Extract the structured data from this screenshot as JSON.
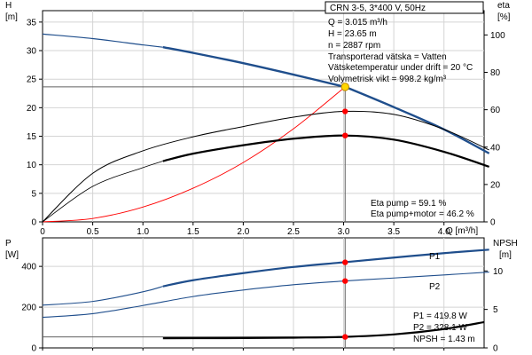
{
  "chart_data": [
    {
      "type": "line",
      "header": "CRN 3-5, 3*400 V, 50Hz",
      "ylabel_left": "H",
      "ylabel_left_unit": "[m]",
      "ylabel_right": "eta",
      "ylabel_right_unit": "[%]",
      "xlabel": "Q [m³/h]",
      "xlim": [
        0,
        4.4
      ],
      "ylim_left": [
        0,
        37
      ],
      "ylim_right": [
        0,
        113
      ],
      "x_ticks": [
        "0",
        "0.5",
        "1.0",
        "1.5",
        "2.0",
        "2.5",
        "3.0",
        "3.5",
        "4.0"
      ],
      "y_ticks_left": [
        "0",
        "5",
        "10",
        "15",
        "20",
        "25",
        "30",
        "35"
      ],
      "y_ticks_right": [
        "0",
        "20",
        "40",
        "60",
        "80",
        "100"
      ],
      "grid": true,
      "annotations": [
        "Q = 3.015 m³/h",
        "H = 23.65 m",
        "n = 2887 rpm",
        "Transporterad vätska = Vatten",
        "Vätsketemperatur under drift = 20 °C",
        "Volymetrisk vikt = 998.2 kg/m³"
      ],
      "eta_annotations": [
        "Eta pump = 59.1 %",
        "Eta pump+motor = 46.2 %"
      ],
      "series": [
        {
          "color": "#1f4e8c",
          "axis": "left",
          "x": [
            0,
            0.5,
            1.0,
            1.2,
            1.5,
            2.0,
            2.5,
            3.0,
            3.015,
            3.5,
            4.0,
            4.45
          ],
          "values": [
            32.9,
            32.1,
            31.0,
            30.6,
            29.6,
            27.8,
            25.8,
            23.7,
            23.65,
            20.1,
            16.2,
            12.0
          ]
        },
        {
          "color": "#000000",
          "axis": "right",
          "x": [
            0,
            0.5,
            1.0,
            1.5,
            2.0,
            2.5,
            3.0,
            3.5,
            4.0,
            4.45
          ],
          "values": [
            0,
            26,
            38,
            45.5,
            51,
            56,
            59.1,
            57.5,
            49.5,
            38.5
          ]
        },
        {
          "color": "#000000",
          "axis": "right",
          "x": [
            0,
            0.5,
            1.0,
            1.2,
            1.5,
            2.0,
            2.5,
            3.0,
            3.5,
            4.0,
            4.45
          ],
          "values": [
            0,
            19,
            29,
            32.5,
            36.5,
            41,
            44.5,
            46.2,
            44,
            37.5,
            29.5
          ]
        },
        {
          "color": "#ff0000",
          "axis": "left",
          "x": [
            0,
            0.5,
            1.0,
            1.5,
            2.0,
            2.5,
            3.015
          ],
          "values": [
            0,
            0.6,
            2.6,
            5.9,
            10.4,
            16.3,
            23.65
          ]
        }
      ],
      "operating_point": {
        "x": 3.015,
        "y": 23.65
      },
      "eta_points": [
        59.1,
        46.2
      ]
    },
    {
      "type": "line",
      "ylabel_left": "P",
      "ylabel_left_unit": "[W]",
      "ylabel_right": "NPSH",
      "ylabel_right_unit": "[m]",
      "xlim": [
        0,
        4.4
      ],
      "ylim_left": [
        0,
        540
      ],
      "ylim_right": [
        0,
        14.3
      ],
      "y_ticks_left": [
        "0",
        "200",
        "400"
      ],
      "y_ticks_right": [
        "0",
        "5",
        "10"
      ],
      "grid": true,
      "annotations": [
        "P1 = 419.8 W",
        "P2 = 328.1 W",
        "NPSH = 1.43 m"
      ],
      "series": [
        {
          "name": "P1",
          "color": "#1f4e8c",
          "axis": "left",
          "x": [
            0,
            0.5,
            1.0,
            1.2,
            1.5,
            2.0,
            2.5,
            3.0,
            3.5,
            4.0,
            4.45
          ],
          "values": [
            210,
            228,
            275,
            302,
            332,
            367,
            397,
            420,
            443,
            465,
            482
          ]
        },
        {
          "name": "P2",
          "color": "#1f4e8c",
          "axis": "left",
          "x": [
            0,
            0.5,
            1.0,
            1.5,
            2.0,
            2.5,
            3.0,
            3.5,
            4.0,
            4.45
          ],
          "values": [
            150,
            168,
            208,
            252,
            284,
            310,
            328,
            343,
            358,
            372
          ]
        },
        {
          "color": "#000000",
          "axis": "right",
          "x": [
            1.2,
            1.5,
            2.0,
            2.5,
            3.0,
            3.5,
            4.0,
            4.4
          ],
          "values": [
            1.25,
            1.26,
            1.28,
            1.33,
            1.43,
            1.75,
            2.45,
            3.35
          ]
        }
      ],
      "operating_points_left": [
        419.8,
        328.1
      ],
      "operating_point_right": 1.43
    }
  ]
}
